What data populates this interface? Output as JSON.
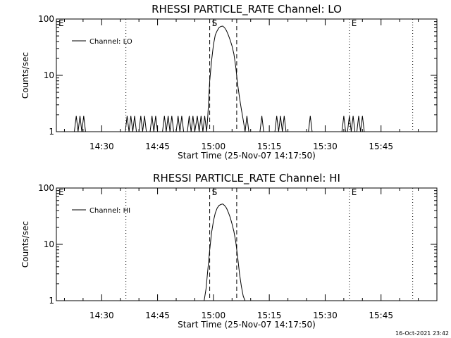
{
  "chart_data": [
    {
      "type": "line",
      "title": "RHESSI PARTICLE_RATE Channel: LO",
      "xlabel": "Start Time (25-Nov-07 14:17:50)",
      "ylabel": "Counts/sec",
      "yscale": "log",
      "ylim": [
        1,
        100
      ],
      "xlim": [
        "14:17:50",
        "16:00:00"
      ],
      "y_ticks": [
        1,
        10,
        100
      ],
      "y_tick_labels": [
        "1",
        "10",
        "100"
      ],
      "x_ticks": [
        "14:30",
        "14:45",
        "15:00",
        "15:15",
        "15:30",
        "15:45"
      ],
      "legend": {
        "label": "Channel: LO",
        "placement": "top-left"
      },
      "grid": false,
      "markers": [
        {
          "label": "E",
          "time": "14:17:50",
          "style": "dotted"
        },
        {
          "time": "14:36:30",
          "style": "dotted"
        },
        {
          "label": "S",
          "time": "14:59:00",
          "style": "dashed"
        },
        {
          "time": "15:06:15",
          "style": "dashed"
        },
        {
          "label": "E",
          "time": "15:36:30",
          "style": "dotted"
        },
        {
          "time": "15:53:30",
          "style": "dotted"
        }
      ],
      "series": [
        {
          "x": [
            "14:22:40",
            "14:23:10",
            "14:23:40",
            "14:24:10",
            "14:24:40",
            "14:25:10",
            "14:25:40",
            "14:36:20",
            "14:36:50",
            "14:37:20",
            "14:37:50",
            "14:38:20",
            "14:38:50",
            "14:39:20",
            "14:40:00",
            "14:40:30",
            "14:41:00",
            "14:41:30",
            "14:42:00",
            "14:43:00",
            "14:43:30",
            "14:44:00",
            "14:44:30",
            "14:45:00",
            "14:46:20",
            "14:46:50",
            "14:47:20",
            "14:47:50",
            "14:48:20",
            "14:48:50",
            "14:49:20",
            "14:50:00",
            "14:50:30",
            "14:51:00",
            "14:51:30",
            "14:52:00",
            "14:53:00",
            "14:53:30",
            "14:54:00",
            "14:54:30",
            "14:55:00",
            "14:55:40",
            "14:56:10",
            "14:56:40",
            "14:57:10",
            "14:57:40",
            "14:58:10",
            "14:58:30",
            "14:59:00",
            "14:59:30",
            "15:00:00",
            "15:00:30",
            "15:01:00",
            "15:01:30",
            "15:02:00",
            "15:02:30",
            "15:03:00",
            "15:03:30",
            "15:04:00",
            "15:04:30",
            "15:05:00",
            "15:05:30",
            "15:06:00",
            "15:06:30",
            "15:07:00",
            "15:07:30",
            "15:08:00",
            "15:08:30",
            "15:09:00",
            "15:09:30",
            "15:10:00",
            "15:12:30",
            "15:13:00",
            "15:13:30",
            "15:14:00",
            "15:16:30",
            "15:17:00",
            "15:17:30",
            "15:18:00",
            "15:18:30",
            "15:19:00",
            "15:19:30",
            "15:20:00",
            "15:25:30",
            "15:26:00",
            "15:26:30",
            "15:27:00",
            "15:34:30",
            "15:35:00",
            "15:35:30",
            "15:36:00",
            "15:36:30",
            "15:37:00",
            "15:37:30",
            "15:38:00",
            "15:38:30",
            "15:39:00",
            "15:39:30",
            "15:40:00",
            "15:40:30",
            "15:41:00"
          ],
          "y": [
            1,
            1.9,
            1,
            1.9,
            1,
            1.9,
            1,
            1,
            1.9,
            1,
            1.9,
            1,
            1.9,
            1,
            1,
            1.9,
            1,
            1.9,
            1,
            1,
            1.9,
            1,
            1.9,
            1,
            1,
            1.9,
            1,
            1.9,
            1,
            1.9,
            1,
            1,
            1.9,
            1,
            1.9,
            1,
            1,
            1.9,
            1,
            1.9,
            1,
            1.9,
            1,
            1.9,
            1,
            1.9,
            1,
            1.9,
            8,
            18,
            35,
            52,
            62,
            70,
            74,
            75,
            70,
            62,
            52,
            42,
            33,
            24,
            14,
            7,
            4,
            2.5,
            1.6,
            1,
            1.9,
            1,
            1,
            1,
            1.9,
            1,
            1,
            1,
            1.9,
            1,
            1.9,
            1,
            1.9,
            1,
            1,
            1,
            1.9,
            1,
            1,
            1,
            1.9,
            1,
            1,
            1.9,
            1,
            1.9,
            1,
            1,
            1.9,
            1,
            1.9,
            1,
            1
          ]
        }
      ]
    },
    {
      "type": "line",
      "title": "RHESSI PARTICLE_RATE Channel: HI",
      "xlabel": "Start Time (25-Nov-07 14:17:50)",
      "ylabel": "Counts/sec",
      "yscale": "log",
      "ylim": [
        1,
        100
      ],
      "xlim": [
        "14:17:50",
        "16:00:00"
      ],
      "y_ticks": [
        1,
        10,
        100
      ],
      "y_tick_labels": [
        "1",
        "10",
        "100"
      ],
      "x_ticks": [
        "14:30",
        "14:45",
        "15:00",
        "15:15",
        "15:30",
        "15:45"
      ],
      "legend": {
        "label": "Channel: HI",
        "placement": "top-left"
      },
      "grid": false,
      "markers": [
        {
          "label": "E",
          "time": "14:17:50",
          "style": "dotted"
        },
        {
          "time": "14:36:30",
          "style": "dotted"
        },
        {
          "label": "S",
          "time": "14:59:00",
          "style": "dashed"
        },
        {
          "time": "15:06:15",
          "style": "dashed"
        },
        {
          "label": "E",
          "time": "15:36:30",
          "style": "dotted"
        },
        {
          "time": "15:53:30",
          "style": "dotted"
        }
      ],
      "series": [
        {
          "x": [
            "14:57:30",
            "14:58:00",
            "14:58:30",
            "14:59:00",
            "14:59:30",
            "15:00:00",
            "15:00:30",
            "15:01:00",
            "15:01:30",
            "15:02:00",
            "15:02:30",
            "15:03:00",
            "15:03:30",
            "15:04:00",
            "15:04:30",
            "15:05:00",
            "15:05:30",
            "15:06:00",
            "15:06:30",
            "15:07:00",
            "15:07:30",
            "15:08:00",
            "15:08:30"
          ],
          "y": [
            1,
            1.6,
            3.5,
            8,
            16,
            26,
            36,
            44,
            49,
            51,
            52,
            49,
            44,
            37,
            30,
            23,
            17,
            11,
            6,
            3,
            1.8,
            1.2,
            1
          ]
        }
      ]
    }
  ],
  "timestamp": "16-Oct-2021 23:42"
}
